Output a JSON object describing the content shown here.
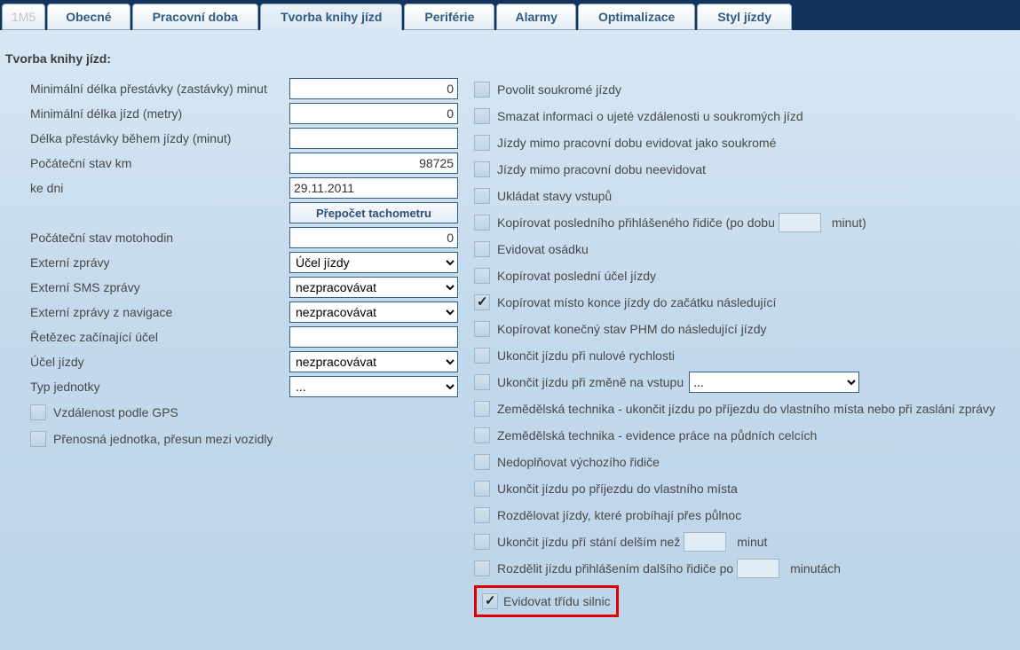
{
  "tabs": {
    "id": "1M5",
    "items": [
      "Obecné",
      "Pracovní doba",
      "Tvorba knihy jízd",
      "Periférie",
      "Alarmy",
      "Optimalizace",
      "Styl jízdy"
    ],
    "active_index": 2
  },
  "section_title": "Tvorba knihy jízd:",
  "left": [
    {
      "type": "num",
      "label": "Minimální délka přestávky (zastávky) minut",
      "value": "0"
    },
    {
      "type": "num",
      "label": "Minimální délka jízd (metry)",
      "value": "0"
    },
    {
      "type": "text",
      "label": "Délka přestávky během jízdy (minut)",
      "value": ""
    },
    {
      "type": "num",
      "label": "Počáteční stav km",
      "value": "98725"
    },
    {
      "type": "text",
      "label": "ke dni",
      "value": "29.11.2011"
    },
    {
      "type": "btn",
      "label": "",
      "value": "Přepočet tachometru"
    },
    {
      "type": "num",
      "label": "Počáteční stav motohodin",
      "value": "0"
    },
    {
      "type": "sel",
      "label": "Externí zprávy",
      "value": "Účel jízdy"
    },
    {
      "type": "sel",
      "label": "Externí SMS zprávy",
      "value": "nezpracovávat"
    },
    {
      "type": "sel",
      "label": "Externí zprávy z navigace",
      "value": "nezpracovávat"
    },
    {
      "type": "text",
      "label": "Řetězec začínající účel",
      "value": ""
    },
    {
      "type": "sel",
      "label": "Účel jízdy",
      "value": "nezpracovávat"
    },
    {
      "type": "sel",
      "label": "Typ jednotky",
      "value": "..."
    }
  ],
  "left_checks": [
    {
      "label": "Vzdálenost podle GPS"
    },
    {
      "label": "Přenosná jednotka, přesun mezi vozidly"
    }
  ],
  "right": [
    {
      "t": "c",
      "label": "Povolit soukromé jízdy"
    },
    {
      "t": "c",
      "label": "Smazat informaci o ujeté vzdálenosti u soukromých jízd"
    },
    {
      "t": "c",
      "label": "Jízdy mimo pracovní dobu evidovat jako soukromé"
    },
    {
      "t": "c",
      "label": "Jízdy mimo pracovní dobu neevidovat"
    },
    {
      "t": "c",
      "label": "Ukládat stavy vstupů"
    },
    {
      "t": "ci",
      "label_a": "Kopírovat posledního přihlášeného řidiče (po dobu",
      "label_b": "minut)"
    },
    {
      "t": "c",
      "label": "Evidovat osádku"
    },
    {
      "t": "c",
      "label": "Kopírovat poslední účel jízdy"
    },
    {
      "t": "c",
      "label": "Kopírovat místo konce jízdy do začátku následující",
      "checked": true
    },
    {
      "t": "c",
      "label": "Kopírovat konečný stav PHM do následující jízdy"
    },
    {
      "t": "c",
      "label": "Ukončit jízdu při nulové rychlosti"
    },
    {
      "t": "cs",
      "label": "Ukončit jízdu při změně na vstupu",
      "sel": "..."
    },
    {
      "t": "c",
      "label": "Zemědělská technika - ukončit jízdu po příjezdu do vlastního místa nebo při zaslání zprávy"
    },
    {
      "t": "c",
      "label": "Zemědělská technika - evidence práce na půdních celcích"
    },
    {
      "t": "c",
      "label": "Nedoplňovat výchozího řidiče"
    },
    {
      "t": "c",
      "label": "Ukončit jízdu po příjezdu do vlastního místa"
    },
    {
      "t": "c",
      "label": "Rozdělovat jízdy, které probíhají přes půlnoc"
    },
    {
      "t": "ci",
      "label_a": "Ukončit jízdu pří stání delším než",
      "label_b": "minut"
    },
    {
      "t": "ci",
      "label_a": "Rozdělit jízdu přihlášením dalšího řidiče po",
      "label_b": "minutách"
    }
  ],
  "highlight": {
    "label": "Evidovat třídu silnic",
    "checked": true
  },
  "colors": {
    "nav_bg": "#12335b",
    "tab_text": "#325a82",
    "border_input": "#2f5f8f",
    "highlight_border": "#e00000",
    "bg_top": "#dae8f4",
    "bg_bottom": "#bdd5ea"
  }
}
